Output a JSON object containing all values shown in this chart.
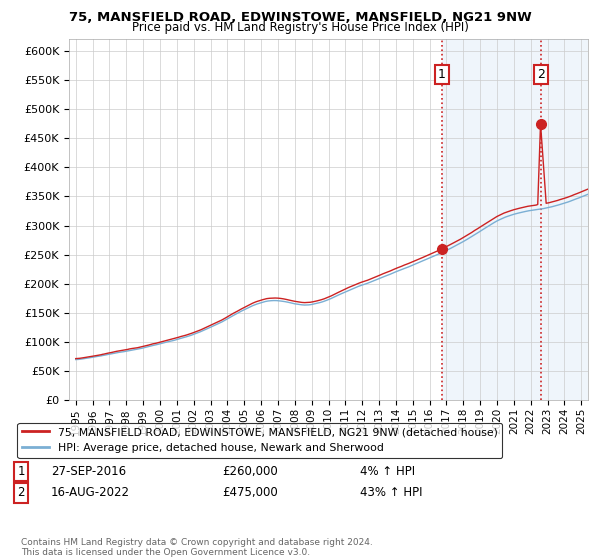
{
  "title": "75, MANSFIELD ROAD, EDWINSTOWE, MANSFIELD, NG21 9NW",
  "subtitle": "Price paid vs. HM Land Registry's House Price Index (HPI)",
  "yticks": [
    0,
    50000,
    100000,
    150000,
    200000,
    250000,
    300000,
    350000,
    400000,
    450000,
    500000,
    550000,
    600000
  ],
  "ytick_labels": [
    "£0",
    "£50K",
    "£100K",
    "£150K",
    "£200K",
    "£250K",
    "£300K",
    "£350K",
    "£400K",
    "£450K",
    "£500K",
    "£550K",
    "£600K"
  ],
  "ylim": [
    0,
    620000
  ],
  "xlim_start": 1994.6,
  "xlim_end": 2025.4,
  "hpi_color": "#7bafd4",
  "price_color": "#cc2222",
  "dotted_color": "#cc2222",
  "marker_color": "#cc2222",
  "fill_color": "#d9e8f5",
  "marker1_x": 2016.74,
  "marker1_y": 260000,
  "marker2_x": 2022.62,
  "marker2_y": 475000,
  "label1": "1",
  "label2": "2",
  "legend_line1": "75, MANSFIELD ROAD, EDWINSTOWE, MANSFIELD, NG21 9NW (detached house)",
  "legend_line2": "HPI: Average price, detached house, Newark and Sherwood",
  "annotation1_date": "27-SEP-2016",
  "annotation1_price": "£260,000",
  "annotation1_hpi": "4% ↑ HPI",
  "annotation2_date": "16-AUG-2022",
  "annotation2_price": "£475,000",
  "annotation2_hpi": "43% ↑ HPI",
  "footer": "Contains HM Land Registry data © Crown copyright and database right 2024.\nThis data is licensed under the Open Government Licence v3.0.",
  "bg_color": "#ffffff",
  "grid_color": "#cccccc"
}
